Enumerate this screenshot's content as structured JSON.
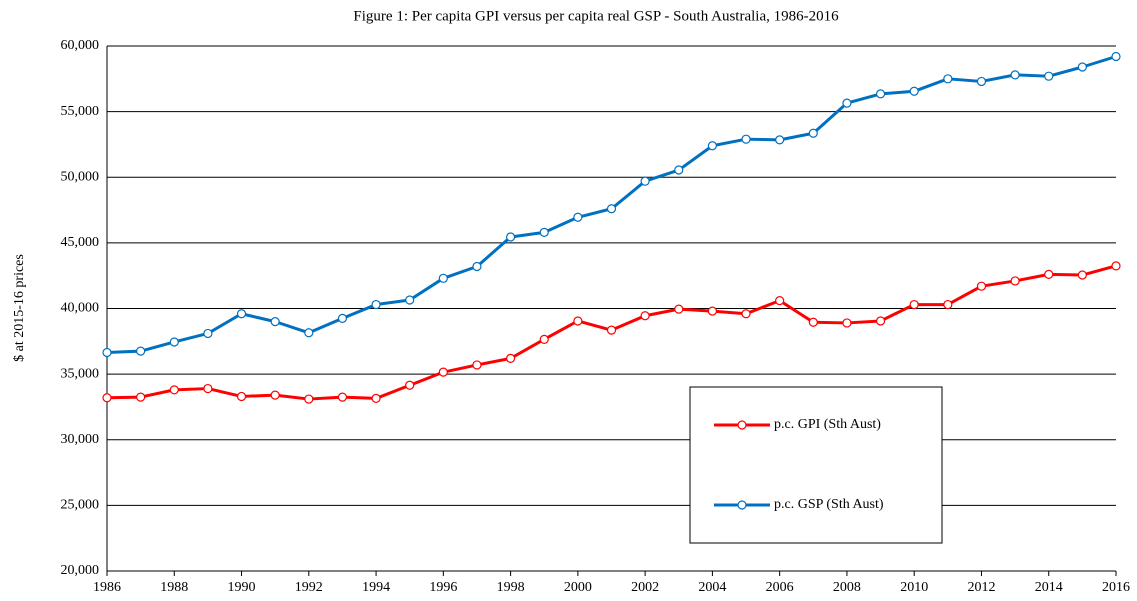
{
  "chart_data": {
    "type": "line",
    "title": "Figure 1: Per capita GPI versus per capita real GSP - South Australia, 1986-2016",
    "y_label": "$ at 2015-16 prices",
    "x": [
      1986,
      1987,
      1988,
      1989,
      1990,
      1991,
      1992,
      1993,
      1994,
      1995,
      1996,
      1997,
      1998,
      1999,
      2000,
      2001,
      2002,
      2003,
      2004,
      2005,
      2006,
      2007,
      2008,
      2009,
      2010,
      2011,
      2012,
      2013,
      2014,
      2015,
      2016
    ],
    "series": [
      {
        "name": "p.c. GPI (Sth Aust)",
        "color": "#ff0000",
        "values": [
          33200,
          33250,
          33800,
          33900,
          33300,
          33400,
          33100,
          33250,
          33150,
          34150,
          35150,
          35700,
          36200,
          37650,
          39050,
          38350,
          39450,
          39950,
          39800,
          39600,
          40600,
          38950,
          38900,
          39050,
          40300,
          40300,
          41700,
          42100,
          42600,
          42550,
          43250
        ]
      },
      {
        "name": "p.c. GSP (Sth Aust)",
        "color": "#0070c0",
        "values": [
          36650,
          36750,
          37450,
          38100,
          39600,
          39000,
          38150,
          39250,
          40300,
          40650,
          42300,
          43200,
          45450,
          45800,
          46950,
          47600,
          49700,
          50550,
          52400,
          52900,
          52850,
          53350,
          55650,
          56350,
          56550,
          57500,
          57300,
          57800,
          57700,
          58400,
          59200
        ]
      }
    ],
    "xlim": [
      1986,
      2016
    ],
    "xticks": [
      1986,
      1988,
      1990,
      1992,
      1994,
      1996,
      1998,
      2000,
      2002,
      2004,
      2006,
      2008,
      2010,
      2012,
      2014,
      2016
    ],
    "ylim": [
      20000,
      60000
    ],
    "yticks": [
      {
        "value": 20000,
        "label": "20,000"
      },
      {
        "value": 25000,
        "label": "25,000"
      },
      {
        "value": 30000,
        "label": "30,000"
      },
      {
        "value": 35000,
        "label": "35,000"
      },
      {
        "value": 40000,
        "label": "40,000"
      },
      {
        "value": 45000,
        "label": "45,000"
      },
      {
        "value": 50000,
        "label": "50,000"
      },
      {
        "value": 55000,
        "label": "55,000"
      },
      {
        "value": 60000,
        "label": "60,000"
      }
    ],
    "grid": true
  }
}
